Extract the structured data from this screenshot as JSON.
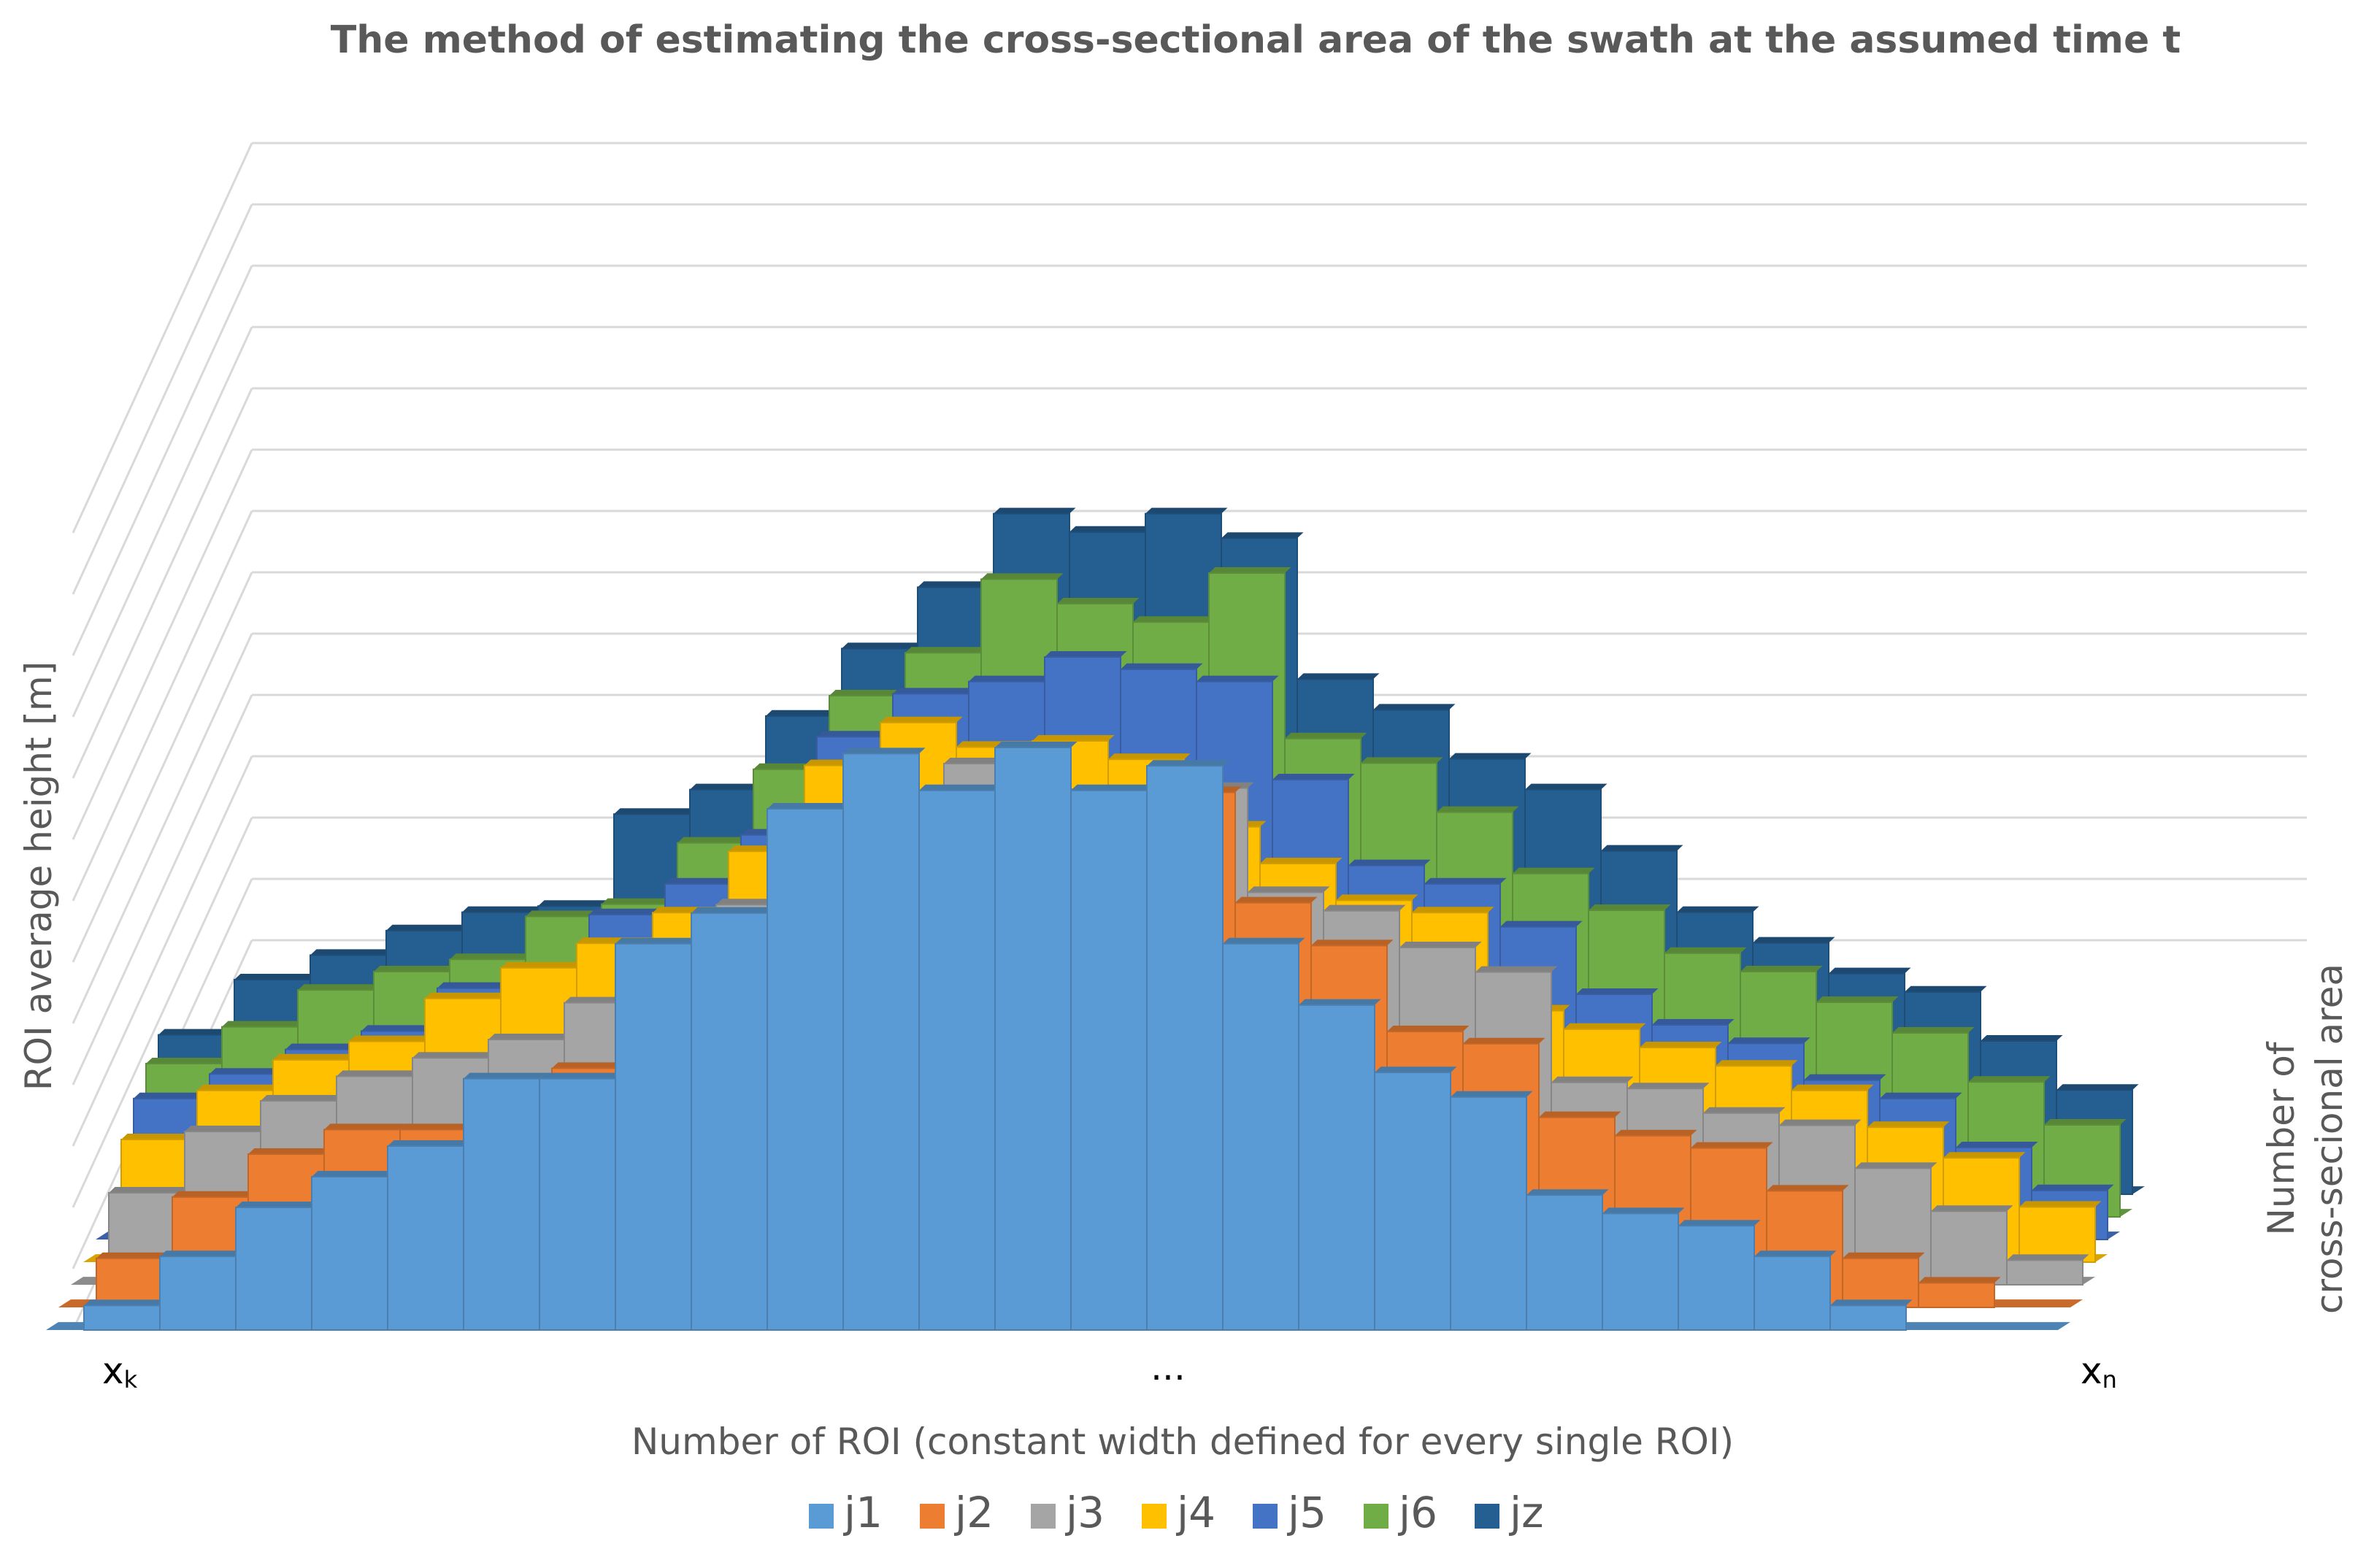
{
  "chart_data": {
    "type": "bar",
    "variant": "3d-stepped-area",
    "title": "The method of estimating the cross-sectional area of the swath at the assumed time t",
    "xlabel": "Number of ROI (constant width defined for every single ROI)",
    "ylabel": "ROI average height [m]",
    "zlabel_lines": [
      "Number of",
      "cross-secional area"
    ],
    "x_ticks": [
      {
        "main": "x",
        "sub": "k"
      },
      {
        "main": "...",
        "sub": ""
      },
      {
        "main": "x",
        "sub": "n"
      }
    ],
    "ylim": [
      0,
      13
    ],
    "grid": true,
    "legend_position": "bottom",
    "categories": 26,
    "series": [
      {
        "name": "j1",
        "color": "#5b9bd5",
        "values": [
          0.4,
          1.2,
          2.0,
          2.5,
          3.0,
          4.1,
          4.1,
          6.3,
          6.8,
          8.5,
          9.4,
          8.8,
          9.5,
          8.8,
          9.2,
          6.3,
          5.3,
          4.2,
          3.8,
          2.2,
          1.9,
          1.7,
          1.2,
          0.4,
          0.0,
          0.0
        ]
      },
      {
        "name": "j2",
        "color": "#ed7d31",
        "values": [
          0.8,
          1.8,
          2.5,
          2.9,
          2.9,
          3.3,
          3.9,
          4.9,
          5.4,
          6.4,
          7.2,
          8.1,
          8.1,
          7.7,
          8.4,
          6.6,
          5.9,
          4.5,
          4.3,
          3.1,
          2.8,
          2.6,
          1.9,
          0.8,
          0.4,
          0.0
        ]
      },
      {
        "name": "j3",
        "color": "#a5a5a5",
        "values": [
          1.5,
          2.5,
          3.0,
          3.4,
          3.7,
          4.0,
          4.6,
          5.3,
          6.2,
          7.0,
          7.6,
          8.5,
          8.0,
          7.7,
          8.1,
          6.4,
          6.1,
          5.5,
          5.1,
          3.3,
          3.2,
          2.8,
          2.6,
          1.9,
          1.2,
          0.4
        ]
      },
      {
        "name": "j4",
        "color": "#ffc000",
        "values": [
          2.0,
          2.8,
          3.3,
          3.6,
          4.3,
          4.8,
          5.2,
          5.7,
          6.7,
          8.1,
          8.8,
          8.4,
          8.5,
          8.2,
          7.1,
          6.5,
          5.9,
          5.7,
          4.1,
          3.8,
          3.5,
          3.2,
          2.8,
          2.2,
          1.7,
          0.9
        ]
      },
      {
        "name": "j5",
        "color": "#4472c4",
        "values": [
          2.3,
          2.7,
          3.1,
          3.4,
          4.1,
          4.2,
          5.3,
          5.8,
          6.6,
          8.2,
          8.9,
          9.1,
          9.5,
          9.3,
          9.1,
          7.5,
          6.1,
          5.8,
          5.1,
          4.0,
          3.5,
          3.2,
          2.6,
          2.3,
          1.5,
          0.8
        ]
      },
      {
        "name": "j6",
        "color": "#70ad47",
        "values": [
          2.5,
          3.1,
          3.7,
          4.0,
          4.2,
          4.9,
          5.1,
          6.1,
          7.3,
          8.5,
          9.2,
          10.4,
          10.0,
          9.7,
          10.5,
          7.8,
          7.4,
          6.6,
          5.6,
          5.0,
          4.3,
          4.0,
          3.5,
          3.0,
          2.2,
          1.5
        ]
      },
      {
        "name": "jz",
        "color": "#255e91",
        "values": [
          2.6,
          3.5,
          3.9,
          4.3,
          4.6,
          4.7,
          6.2,
          6.6,
          7.8,
          8.9,
          9.9,
          11.1,
          10.8,
          11.1,
          10.7,
          8.4,
          7.9,
          7.1,
          6.6,
          5.6,
          4.6,
          4.1,
          3.6,
          3.3,
          2.5,
          1.7
        ]
      }
    ]
  }
}
